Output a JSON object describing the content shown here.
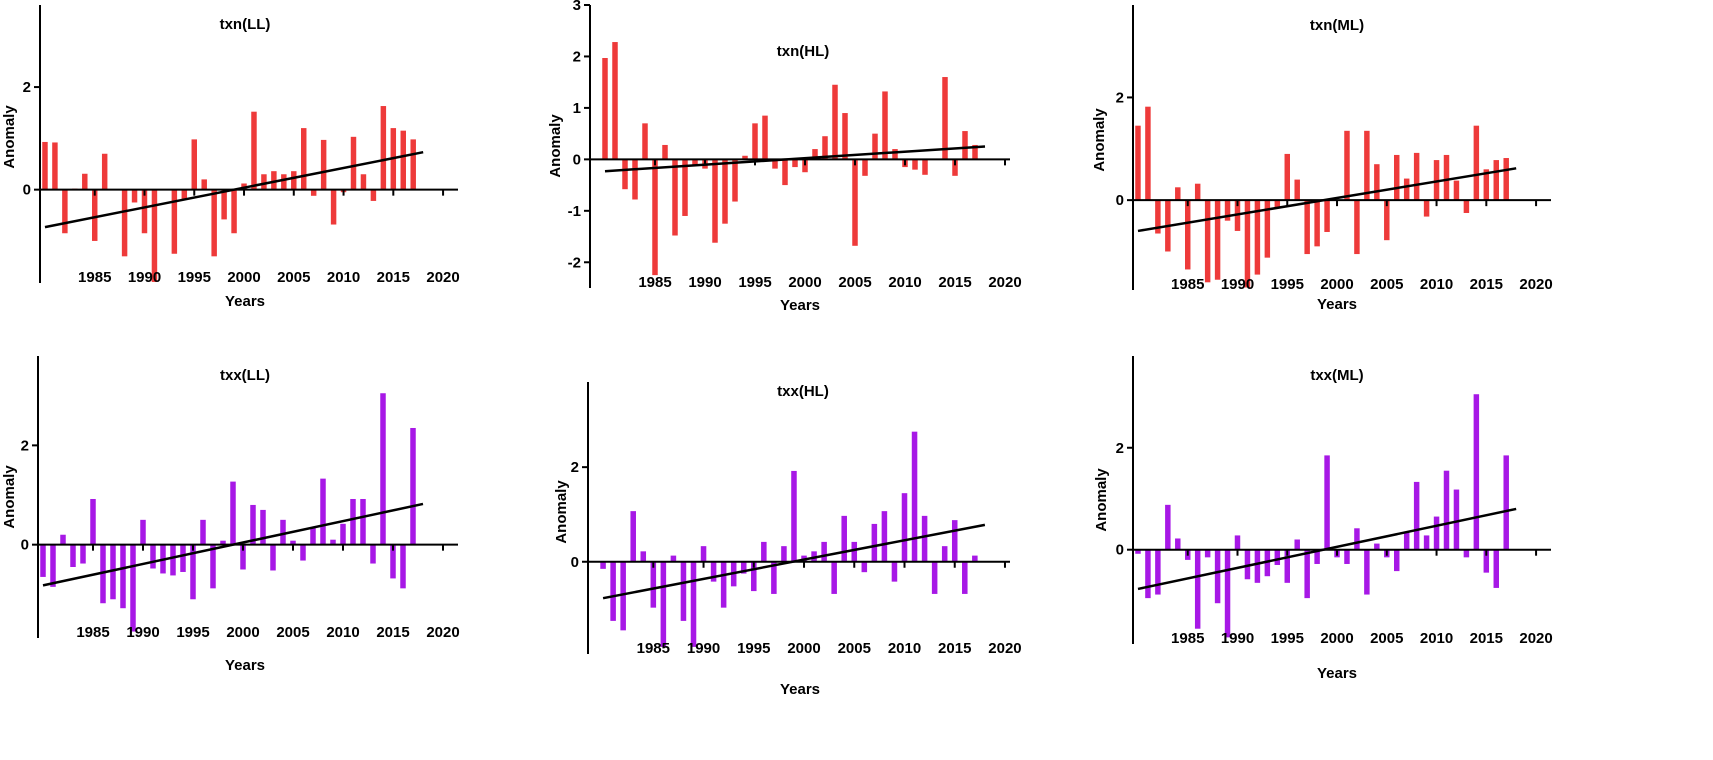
{
  "figure": {
    "rows": 2,
    "cols": 3
  },
  "chart_data": [
    {
      "type": "bar",
      "title": "txn(LL)",
      "xlabel": "Years",
      "ylabel": "Anomaly",
      "color": "#ee3a3a",
      "x": [
        1980,
        1981,
        1982,
        1983,
        1984,
        1985,
        1986,
        1987,
        1988,
        1989,
        1990,
        1991,
        1992,
        1993,
        1994,
        1995,
        1996,
        1997,
        1998,
        1999,
        2000,
        2001,
        2002,
        2003,
        2004,
        2005,
        2006,
        2007,
        2008,
        2009,
        2010,
        2011,
        2012,
        2013,
        2014,
        2015,
        2016,
        2017,
        2018
      ],
      "values": [
        0.93,
        0.92,
        -0.85,
        0.02,
        0.31,
        -1.0,
        0.7,
        0.0,
        -1.3,
        -0.25,
        -0.85,
        -1.8,
        0.0,
        -1.25,
        -0.2,
        0.98,
        0.2,
        -1.3,
        -0.58,
        -0.85,
        0.12,
        1.52,
        0.3,
        0.36,
        0.3,
        0.36,
        1.2,
        -0.12,
        0.97,
        -0.68,
        -0.05,
        1.03,
        0.3,
        -0.22,
        1.63,
        1.2,
        1.15,
        0.98,
        0.0
      ],
      "trend": [
        [
          1980,
          -0.73
        ],
        [
          2018,
          0.73
        ]
      ],
      "xlim": [
        1979.5,
        2021.5
      ],
      "ylim": [
        -1.82,
        3.6
      ],
      "xticks": [
        1985,
        1990,
        1995,
        2000,
        2005,
        2010,
        2015,
        2020
      ],
      "yticks": [
        0,
        2
      ]
    },
    {
      "type": "bar",
      "title": "txn(HL)",
      "xlabel": "Years",
      "ylabel": "Anomaly",
      "color": "#ee3a3a",
      "x": [
        1980,
        1981,
        1982,
        1983,
        1984,
        1985,
        1986,
        1987,
        1988,
        1989,
        1990,
        1991,
        1992,
        1993,
        1994,
        1995,
        1996,
        1997,
        1998,
        1999,
        2000,
        2001,
        2002,
        2003,
        2004,
        2005,
        2006,
        2007,
        2008,
        2009,
        2010,
        2011,
        2012,
        2013,
        2014,
        2015,
        2016,
        2017,
        2018
      ],
      "values": [
        1.97,
        2.28,
        -0.58,
        -0.78,
        0.7,
        -2.25,
        0.28,
        -1.48,
        -1.1,
        -0.1,
        -0.18,
        -1.62,
        -1.25,
        -0.82,
        0.07,
        0.7,
        0.85,
        -0.18,
        -0.5,
        -0.15,
        -0.25,
        0.2,
        0.45,
        1.45,
        0.9,
        -1.68,
        -0.32,
        0.5,
        1.32,
        0.2,
        -0.15,
        -0.2,
        -0.3,
        0.0,
        1.6,
        -0.32,
        0.55,
        0.28,
        0.0
      ],
      "trend": [
        [
          1980,
          -0.23
        ],
        [
          2018,
          0.25
        ]
      ],
      "xlim": [
        1978.5,
        2020.5
      ],
      "ylim": [
        -2.5,
        3.0
      ],
      "xticks": [
        1985,
        1990,
        1995,
        2000,
        2005,
        2010,
        2015,
        2020
      ],
      "yticks": [
        -2,
        -1,
        0,
        1,
        2,
        3
      ]
    },
    {
      "type": "bar",
      "title": "txn(ML)",
      "xlabel": "Years",
      "ylabel": "Anomaly",
      "color": "#ee3a3a",
      "x": [
        1980,
        1981,
        1982,
        1983,
        1984,
        1985,
        1986,
        1987,
        1988,
        1989,
        1990,
        1991,
        1992,
        1993,
        1994,
        1995,
        1996,
        1997,
        1998,
        1999,
        2000,
        2001,
        2002,
        2003,
        2004,
        2005,
        2006,
        2007,
        2008,
        2009,
        2010,
        2011,
        2012,
        2013,
        2014,
        2015,
        2016,
        2017,
        2018
      ],
      "values": [
        1.45,
        1.82,
        -0.65,
        -1.0,
        0.25,
        -1.35,
        0.32,
        -1.6,
        -1.55,
        -0.4,
        -0.6,
        -1.7,
        -1.45,
        -1.12,
        -0.15,
        0.9,
        0.4,
        -1.05,
        -0.9,
        -0.62,
        0.0,
        1.35,
        -1.05,
        1.35,
        0.7,
        -0.78,
        0.88,
        0.42,
        0.92,
        -0.32,
        0.78,
        0.88,
        0.38,
        -0.25,
        1.45,
        0.6,
        0.78,
        0.82,
        0.0
      ],
      "trend": [
        [
          1980,
          -0.6
        ],
        [
          2018,
          0.62
        ]
      ],
      "xlim": [
        1979.5,
        2021.5
      ],
      "ylim": [
        -1.75,
        3.8
      ],
      "xticks": [
        1985,
        1990,
        1995,
        2000,
        2005,
        2010,
        2015,
        2020
      ],
      "yticks": [
        0,
        2
      ]
    },
    {
      "type": "bar",
      "title": "txx(LL)",
      "xlabel": "Years",
      "ylabel": "Anomaly",
      "color": "#a718e6",
      "x": [
        1980,
        1981,
        1982,
        1983,
        1984,
        1985,
        1986,
        1987,
        1988,
        1989,
        1990,
        1991,
        1992,
        1993,
        1994,
        1995,
        1996,
        1997,
        1998,
        1999,
        2000,
        2001,
        2002,
        2003,
        2004,
        2005,
        2006,
        2007,
        2008,
        2009,
        2010,
        2011,
        2012,
        2013,
        2014,
        2015,
        2016,
        2017,
        2018
      ],
      "values": [
        -0.65,
        -0.85,
        0.2,
        -0.45,
        -0.38,
        0.92,
        -1.18,
        -1.1,
        -1.28,
        -1.75,
        0.5,
        -0.48,
        -0.58,
        -0.62,
        -0.55,
        -1.1,
        0.5,
        -0.88,
        0.08,
        1.27,
        -0.5,
        0.8,
        0.7,
        -0.52,
        0.5,
        0.08,
        -0.32,
        0.35,
        1.33,
        0.1,
        0.42,
        0.92,
        0.92,
        -0.38,
        3.05,
        -0.68,
        -0.88,
        2.35,
        0.0
      ],
      "trend": [
        [
          1980,
          -0.82
        ],
        [
          2018,
          0.82
        ]
      ],
      "xlim": [
        1979.5,
        2021.5
      ],
      "ylim": [
        -1.88,
        3.8
      ],
      "xticks": [
        1985,
        1990,
        1995,
        2000,
        2005,
        2010,
        2015,
        2020
      ],
      "yticks": [
        0,
        2
      ]
    },
    {
      "type": "bar",
      "title": "txx(HL)",
      "xlabel": "Years",
      "ylabel": "Anomaly",
      "color": "#a718e6",
      "x": [
        1980,
        1981,
        1982,
        1983,
        1984,
        1985,
        1986,
        1987,
        1988,
        1989,
        1990,
        1991,
        1992,
        1993,
        1994,
        1995,
        1996,
        1997,
        1998,
        1999,
        2000,
        2001,
        2002,
        2003,
        2004,
        2005,
        2006,
        2007,
        2008,
        2009,
        2010,
        2011,
        2012,
        2013,
        2014,
        2015,
        2016,
        2017,
        2018
      ],
      "values": [
        -0.15,
        -1.25,
        -1.45,
        1.07,
        0.22,
        -0.97,
        -1.8,
        0.13,
        -1.25,
        -1.8,
        0.33,
        -0.42,
        -0.97,
        -0.52,
        -0.25,
        -0.62,
        0.42,
        -0.68,
        0.33,
        1.92,
        0.13,
        0.22,
        0.42,
        -0.68,
        0.97,
        0.42,
        -0.22,
        0.8,
        1.07,
        -0.42,
        1.45,
        2.75,
        0.97,
        -0.68,
        0.33,
        0.88,
        -0.68,
        0.13,
        0.0
      ],
      "trend": [
        [
          1980,
          -0.77
        ],
        [
          2018,
          0.78
        ]
      ],
      "xlim": [
        1978.5,
        2020.5
      ],
      "ylim": [
        -1.95,
        3.8
      ],
      "xticks": [
        1985,
        1990,
        1995,
        2000,
        2005,
        2010,
        2015,
        2020
      ],
      "yticks": [
        0,
        2
      ]
    },
    {
      "type": "bar",
      "title": "txx(ML)",
      "xlabel": "Years",
      "ylabel": "Anomaly",
      "color": "#a718e6",
      "x": [
        1980,
        1981,
        1982,
        1983,
        1984,
        1985,
        1986,
        1987,
        1988,
        1989,
        1990,
        1991,
        1992,
        1993,
        1994,
        1995,
        1996,
        1997,
        1998,
        1999,
        2000,
        2001,
        2002,
        2003,
        2004,
        2005,
        2006,
        2007,
        2008,
        2009,
        2010,
        2011,
        2012,
        2013,
        2014,
        2015,
        2016,
        2017,
        2018
      ],
      "values": [
        -0.08,
        -0.95,
        -0.88,
        0.88,
        0.22,
        -0.2,
        -1.55,
        -0.15,
        -1.05,
        -1.72,
        0.28,
        -0.58,
        -0.65,
        -0.52,
        -0.3,
        -0.65,
        0.2,
        -0.95,
        -0.28,
        1.85,
        -0.15,
        -0.28,
        0.42,
        -0.88,
        0.12,
        -0.15,
        -0.42,
        0.35,
        1.33,
        0.28,
        0.65,
        1.55,
        1.18,
        -0.15,
        3.05,
        -0.45,
        -0.75,
        1.85,
        0.0
      ],
      "trend": [
        [
          1980,
          -0.77
        ],
        [
          2018,
          0.8
        ]
      ],
      "xlim": [
        1979.5,
        2021.5
      ],
      "ylim": [
        -1.85,
        3.8
      ],
      "xticks": [
        1985,
        1990,
        1995,
        2000,
        2005,
        2010,
        2015,
        2020
      ],
      "yticks": [
        0,
        2
      ]
    }
  ]
}
